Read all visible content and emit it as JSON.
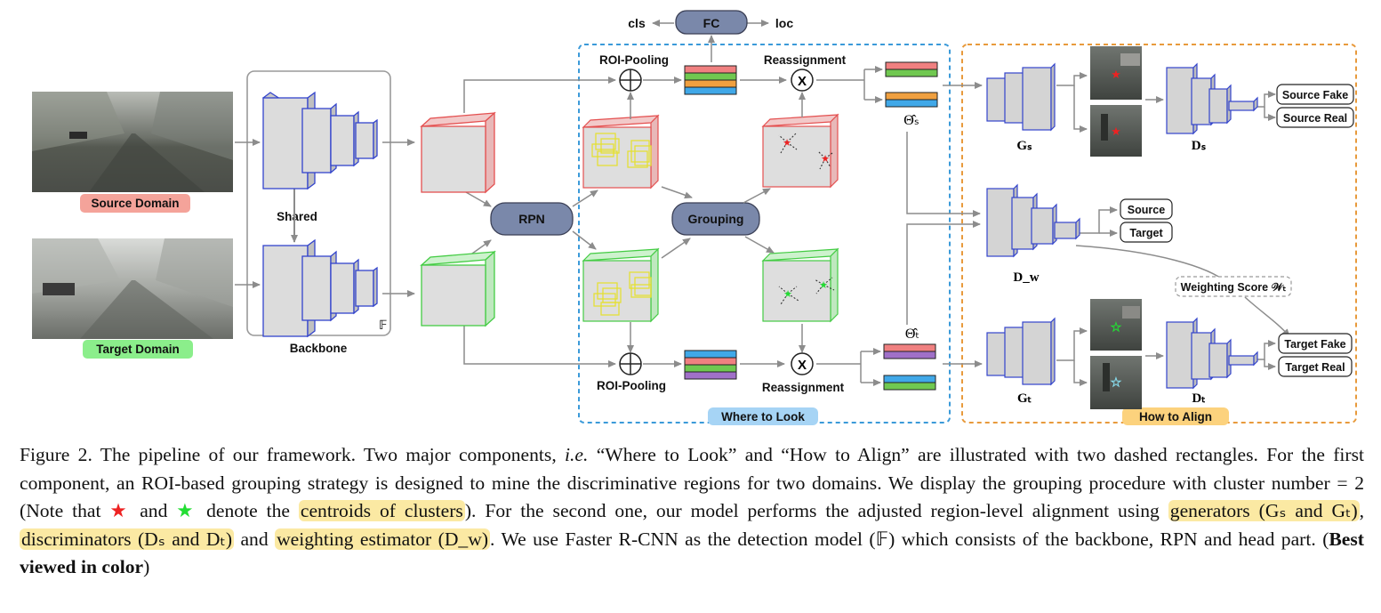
{
  "diagram": {
    "domains": {
      "source": "Source Domain",
      "target": "Target Domain"
    },
    "backbone": {
      "label": "Backbone",
      "shared": "Shared",
      "detector_symbol": "𝔽"
    },
    "rpn": "RPN",
    "grouping": "Grouping",
    "roi_pooling": "ROI-Pooling",
    "reassignment": "Reassignment",
    "fc": {
      "label": "FC",
      "cls": "cls",
      "loc": "loc"
    },
    "theta_s": "Θ̂ₛ",
    "theta_t": "Θ̂ₜ",
    "where_to_look": "Where to Look",
    "how_to_align": "How to Align",
    "gen_s": "Gₛ",
    "gen_t": "Gₜ",
    "disc_s": "Dₛ",
    "disc_t": "Dₜ",
    "disc_w": "D_w",
    "outputs_s": [
      "Source Fake",
      "Source Real"
    ],
    "outputs_w": [
      "Source",
      "Target"
    ],
    "outputs_t": [
      "Target Fake",
      "Target Real"
    ],
    "weighting_score": "Weighting Score 𝒲ₜ"
  },
  "caption": {
    "p1": "Figure 2. The pipeline of our framework. Two major components, ",
    "ie": "i.e.",
    "p2": " “Where to Look” and “How to Align” are illustrated with two dashed rectangles. For the first component, an ROI-based grouping strategy is designed to mine the discriminative regions for two domains. We display the grouping procedure with cluster number = 2 (Note that ",
    "star": "★",
    "and": " and ",
    "p3": " denote the ",
    "hl_centroids": "centroids of clusters",
    "p4": "). For the second one, our model performs the adjusted region-level alignment using ",
    "hl_generators": "generators (Gₛ and Gₜ)",
    "comma": ", ",
    "hl_discriminators": "discriminators (Dₛ and Dₜ)",
    "p5": " and ",
    "hl_weighting": "weighting estimator (D_w)",
    "p6": ". We use Faster R-CNN as the detection model (𝔽) which consists of the backbone, RPN and head part. (",
    "bold": "Best viewed in color",
    "p7": ")"
  },
  "colors": {
    "source_red": "#ee2222",
    "target_green": "#22dd33",
    "rpn_node": "#7a88aa",
    "where_box": "#3b9ad9",
    "align_box": "#e89a3c",
    "highlight": "#fbe9a3"
  }
}
